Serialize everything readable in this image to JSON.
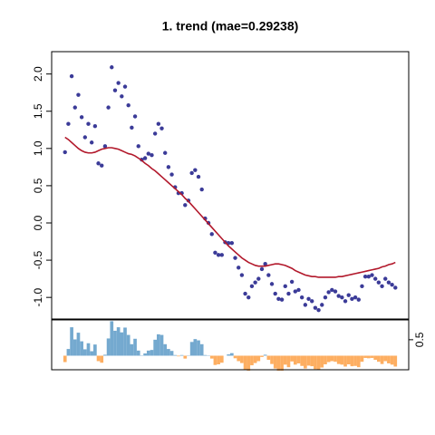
{
  "chart_data": {
    "type": "scatter",
    "title": "1. trend (mae=0.29238)",
    "x": [
      1,
      2,
      3,
      4,
      5,
      6,
      7,
      8,
      9,
      10,
      11,
      12,
      13,
      14,
      15,
      16,
      17,
      18,
      19,
      20,
      21,
      22,
      23,
      24,
      25,
      26,
      27,
      28,
      29,
      30,
      31,
      32,
      33,
      34,
      35,
      36,
      37,
      38,
      39,
      40,
      41,
      42,
      43,
      44,
      45,
      46,
      47,
      48,
      49,
      50,
      51,
      52,
      53,
      54,
      55,
      56,
      57,
      58,
      59,
      60,
      61,
      62,
      63,
      64,
      65,
      66,
      67,
      68,
      69,
      70,
      71,
      72,
      73,
      74,
      75,
      76,
      77,
      78,
      79,
      80,
      81,
      82,
      83,
      84,
      85,
      86,
      87,
      88,
      89,
      90,
      91,
      92,
      93,
      94,
      95,
      96,
      97,
      98,
      99,
      100
    ],
    "xlim": [
      -3,
      104
    ],
    "ylim": [
      -1.29,
      2.3
    ],
    "yticks": [
      {
        "value": -1.0,
        "label": "-1.0"
      },
      {
        "value": -0.5,
        "label": "-0.5"
      },
      {
        "value": 0,
        "label": "0.0"
      },
      {
        "value": 0.5,
        "label": "0.5"
      },
      {
        "value": 1.0,
        "label": "1.0"
      },
      {
        "value": 1.5,
        "label": "1.5"
      },
      {
        "value": 2.0,
        "label": "2.0"
      }
    ],
    "y2lim": [
      -0.44,
      1.12
    ],
    "y2ticks": [
      0.5
    ],
    "series": [
      {
        "type": "points",
        "color": "#3b3b98",
        "values": [
          0.95,
          1.33,
          1.97,
          1.55,
          1.72,
          1.42,
          1.15,
          1.33,
          1.08,
          1.3,
          0.8,
          0.77,
          1.03,
          1.55,
          2.09,
          1.78,
          1.88,
          1.7,
          1.83,
          1.58,
          1.28,
          1.43,
          1.03,
          0.85,
          0.87,
          0.93,
          0.91,
          1.2,
          1.33,
          1.27,
          0.94,
          0.75,
          0.65,
          0.48,
          0.4,
          0.4,
          0.24,
          0.3,
          0.67,
          0.71,
          0.62,
          0.45,
          0.06,
          0.0,
          -0.15,
          -0.4,
          -0.43,
          -0.43,
          -0.26,
          -0.27,
          -0.27,
          -0.47,
          -0.6,
          -0.7,
          -0.95,
          -1.0,
          -0.85,
          -0.8,
          -0.75,
          -0.62,
          -0.55,
          -0.7,
          -0.82,
          -0.95,
          -1.02,
          -1.03,
          -0.85,
          -0.95,
          -0.79,
          -0.92,
          -0.9,
          -1.0,
          -1.1,
          -1.02,
          -1.05,
          -1.14,
          -1.17,
          -1.1,
          -1.0,
          -0.93,
          -0.9,
          -0.92,
          -0.98,
          -1.0,
          -1.05,
          -0.97,
          -1.02,
          -1.0,
          -1.03,
          -0.85,
          -0.72,
          -0.72,
          -0.7,
          -0.75,
          -0.8,
          -0.85,
          -0.75,
          -0.8,
          -0.83,
          -0.87
        ]
      },
      {
        "type": "line",
        "color": "#b2182b",
        "values": [
          1.15,
          1.12,
          1.08,
          1.04,
          1.0,
          0.97,
          0.95,
          0.94,
          0.94,
          0.95,
          0.97,
          0.99,
          1.0,
          1.01,
          1.01,
          1.0,
          0.99,
          0.97,
          0.95,
          0.93,
          0.92,
          0.9,
          0.87,
          0.84,
          0.8,
          0.77,
          0.73,
          0.7,
          0.66,
          0.62,
          0.58,
          0.54,
          0.5,
          0.46,
          0.42,
          0.38,
          0.33,
          0.29,
          0.24,
          0.19,
          0.14,
          0.09,
          0.04,
          -0.01,
          -0.06,
          -0.11,
          -0.16,
          -0.21,
          -0.26,
          -0.31,
          -0.35,
          -0.39,
          -0.43,
          -0.47,
          -0.5,
          -0.53,
          -0.55,
          -0.57,
          -0.58,
          -0.58,
          -0.58,
          -0.57,
          -0.56,
          -0.55,
          -0.55,
          -0.56,
          -0.57,
          -0.59,
          -0.61,
          -0.64,
          -0.66,
          -0.68,
          -0.7,
          -0.71,
          -0.72,
          -0.72,
          -0.73,
          -0.73,
          -0.73,
          -0.73,
          -0.73,
          -0.73,
          -0.72,
          -0.72,
          -0.71,
          -0.7,
          -0.69,
          -0.68,
          -0.67,
          -0.66,
          -0.65,
          -0.64,
          -0.63,
          -0.62,
          -0.61,
          -0.59,
          -0.58,
          -0.56,
          -0.55,
          -0.53
        ]
      },
      {
        "type": "bar",
        "axis": "y2",
        "color": "#74a9cf",
        "negative_color": "#fdae61",
        "values": [
          -0.2,
          0.21,
          0.89,
          0.51,
          0.72,
          0.45,
          0.2,
          0.39,
          0.14,
          0.35,
          -0.17,
          -0.22,
          0.03,
          0.54,
          1.08,
          0.78,
          0.89,
          0.73,
          0.88,
          0.65,
          0.36,
          0.53,
          0.16,
          0.01,
          0.07,
          0.16,
          0.18,
          0.5,
          0.67,
          0.65,
          0.36,
          0.21,
          0.15,
          0.02,
          -0.02,
          0.02,
          -0.09,
          0.01,
          0.43,
          0.52,
          0.48,
          0.36,
          0.02,
          0.01,
          -0.09,
          -0.29,
          -0.27,
          -0.22,
          0.0,
          0.04,
          0.08,
          -0.08,
          -0.17,
          -0.23,
          -0.45,
          -0.47,
          -0.3,
          -0.23,
          -0.17,
          -0.04,
          0.03,
          -0.13,
          -0.26,
          -0.4,
          -0.47,
          -0.47,
          -0.28,
          -0.36,
          -0.18,
          -0.28,
          -0.24,
          -0.32,
          -0.4,
          -0.31,
          -0.33,
          -0.42,
          -0.44,
          -0.37,
          -0.27,
          -0.2,
          -0.17,
          -0.19,
          -0.26,
          -0.28,
          -0.34,
          -0.27,
          -0.33,
          -0.32,
          -0.36,
          -0.19,
          -0.07,
          -0.08,
          -0.07,
          -0.13,
          -0.19,
          -0.26,
          -0.17,
          -0.24,
          -0.28,
          -0.34
        ]
      }
    ]
  }
}
